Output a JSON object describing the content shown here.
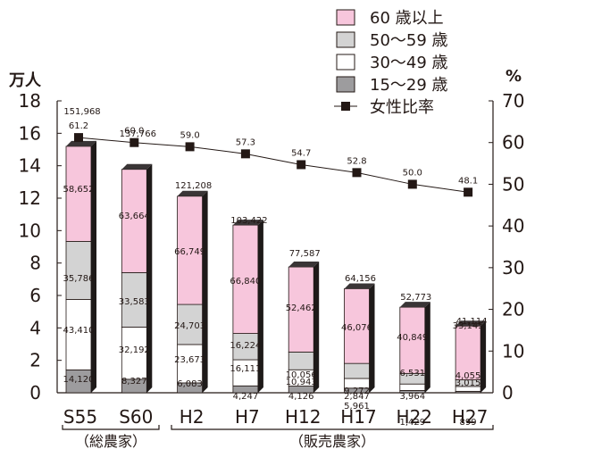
{
  "chart_data": {
    "type": "bar",
    "stacked": true,
    "categories": [
      "S55",
      "S60",
      "H2",
      "H7",
      "H12",
      "H17",
      "H22",
      "H27"
    ],
    "group_labels": [
      {
        "label": "（総農家）",
        "categories": [
          "S55",
          "S60"
        ]
      },
      {
        "label": "（販売農家）",
        "categories": [
          "H2",
          "H7",
          "H12",
          "H17",
          "H22",
          "H27"
        ]
      }
    ],
    "y_left": {
      "unit_label": "万人",
      "ylim": [
        0,
        18
      ],
      "ticks": [
        "0",
        "2",
        "4",
        "6",
        "8",
        "10",
        "12",
        "14",
        "16",
        "18"
      ]
    },
    "y_right": {
      "unit_label": "%",
      "ylim": [
        0,
        70
      ],
      "ticks": [
        "0",
        "10",
        "20",
        "30",
        "40",
        "50",
        "60",
        "70"
      ]
    },
    "series": [
      {
        "name": "15～29 歳",
        "color": "#9d9c9e",
        "values": [
          14120,
          8327,
          6083,
          4247,
          4126,
          2847,
          1429,
          899
        ],
        "labels": [
          "14,120",
          "8,327",
          "6,083",
          "4,247",
          "4,126",
          "2,847",
          "1,429",
          "899"
        ]
      },
      {
        "name": "30～49 歳",
        "color": "#ffffff",
        "values": [
          43410,
          32192,
          23673,
          16111,
          10056,
          5961,
          3964,
          3015
        ],
        "labels": [
          "43,410",
          "32,192",
          "23,673",
          "16,111",
          "10,056",
          "5,961",
          "3,964",
          "3,015"
        ]
      },
      {
        "name": "50～59 歳",
        "color": "#d3d3d3",
        "values": [
          35786,
          33583,
          24703,
          16224,
          10943,
          9272,
          6531,
          4055
        ],
        "labels": [
          "35,786",
          "33,583",
          "24,703",
          "16,224",
          "10,943",
          "9,272",
          "6,531",
          "4,055"
        ]
      },
      {
        "name": "60 歳以上",
        "color": "#f7c6dc",
        "values": [
          58652,
          63664,
          66749,
          66840,
          52462,
          46076,
          40849,
          33145
        ],
        "labels": [
          "58,652",
          "63,664",
          "66,749",
          "66,840",
          "52,462",
          "46,076",
          "40,849",
          "33,145"
        ]
      }
    ],
    "totals": {
      "values": [
        151968,
        137766,
        121208,
        103422,
        77587,
        64156,
        52773,
        41114
      ],
      "labels": [
        "151,968",
        "137,766",
        "121,208",
        "103,422",
        "77,587",
        "64,156",
        "52,773",
        "41,114"
      ]
    },
    "line_series": {
      "name": "女性比率",
      "axis": "right",
      "values": [
        61.2,
        60.0,
        59.0,
        57.3,
        54.7,
        52.8,
        50.0,
        48.1
      ],
      "labels": [
        "61.2",
        "60.0",
        "59.0",
        "57.3",
        "54.7",
        "52.8",
        "50.0",
        "48.1"
      ]
    },
    "legend": {
      "position": "top-right",
      "items": [
        {
          "label": "60 歳以上",
          "color": "#f7c6dc",
          "kind": "box"
        },
        {
          "label": "50～59 歳",
          "color": "#d3d3d3",
          "kind": "box"
        },
        {
          "label": "30～49 歳",
          "color": "#ffffff",
          "kind": "box"
        },
        {
          "label": "15～29 歳",
          "color": "#9d9c9e",
          "kind": "box"
        },
        {
          "label": "女性比率",
          "color": "#231815",
          "kind": "line-marker"
        }
      ]
    },
    "grid": false
  }
}
